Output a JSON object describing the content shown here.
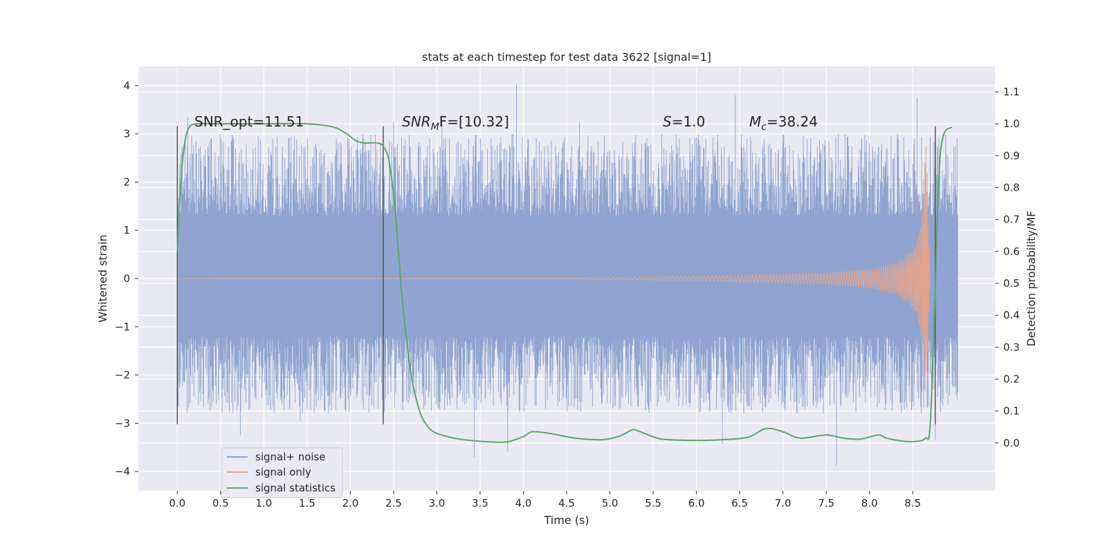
{
  "chart_data": {
    "type": "line",
    "title": "stats at each timestep for test data 3622 [signal=1]",
    "xlabel": "Time (s)",
    "ylabel": "Whitened strain",
    "y2label": "Detection probability/MF",
    "xlim": [
      -0.45,
      9.45
    ],
    "ylim": [
      -4.4,
      4.4
    ],
    "y2lim": [
      -0.15,
      1.18
    ],
    "x_ticks": [
      "0.0",
      "0.5",
      "1.0",
      "1.5",
      "2.0",
      "2.5",
      "3.0",
      "3.5",
      "4.0",
      "4.5",
      "5.0",
      "5.5",
      "6.0",
      "6.5",
      "7.0",
      "7.5",
      "8.0",
      "8.5"
    ],
    "y_ticks": [
      "4",
      "3",
      "2",
      "1",
      "0",
      "−1",
      "−2",
      "−3",
      "−4"
    ],
    "y2_ticks": [
      "1.1",
      "1.0",
      "0.9",
      "0.8",
      "0.7",
      "0.6",
      "0.5",
      "0.4",
      "0.3",
      "0.2",
      "0.1",
      "0.0"
    ],
    "grid": true,
    "legend_position": "lower-left",
    "annotations": {
      "snr_opt": "SNR_opt=11.51",
      "snr_mf_main": "SNR",
      "snr_mf_sub": "M",
      "snr_mf_rest": "F=[10.32]",
      "s_var": "S",
      "s_rest": "=1.0",
      "mc_var": "M",
      "mc_sub": "c",
      "mc_rest": "=38.24"
    },
    "vertical_lines": [
      {
        "x": 0.0,
        "y_range": [
          -3.02,
          3.16
        ]
      },
      {
        "x": 2.38,
        "y_range": [
          -3.02,
          3.16
        ]
      },
      {
        "x": 8.76,
        "y_range": [
          -3.02,
          3.16
        ]
      }
    ],
    "noise_envelope": {
      "x_range": [
        0.0,
        9.02
      ],
      "core_y": [
        -1.2,
        1.3
      ]
    },
    "series": [
      {
        "name": "signal+ noise",
        "color": "#8fa4d0",
        "x_range": [
          0.0,
          9.02
        ],
        "peaks": [
          {
            "x": 0.12,
            "y": 3.35
          },
          {
            "x": 0.73,
            "y": -3.25
          },
          {
            "x": 1.42,
            "y": -2.95
          },
          {
            "x": 2.5,
            "y": 3.25
          },
          {
            "x": 3.06,
            "y": 3.4
          },
          {
            "x": 3.43,
            "y": -3.7
          },
          {
            "x": 3.82,
            "y": -3.6
          },
          {
            "x": 3.92,
            "y": 4.02
          },
          {
            "x": 4.65,
            "y": 3.25
          },
          {
            "x": 6.45,
            "y": 3.8
          },
          {
            "x": 6.3,
            "y": -3.42
          },
          {
            "x": 7.62,
            "y": -3.88
          },
          {
            "x": 8.55,
            "y": 3.75
          },
          {
            "x": 8.76,
            "y": -3.35
          }
        ]
      },
      {
        "name": "signal only",
        "color": "#e3a58e",
        "x": [
          0.0,
          4.5,
          5.5,
          6.5,
          7.5,
          8.0,
          8.3,
          8.5,
          8.6,
          8.65,
          8.7
        ],
        "amplitude": [
          0.0,
          0.01,
          0.04,
          0.07,
          0.12,
          0.2,
          0.33,
          0.6,
          1.1,
          2.95,
          0.0
        ]
      },
      {
        "name": "signal statistics",
        "color": "#55a868",
        "x": [
          0.0,
          0.03,
          0.08,
          0.14,
          0.25,
          0.5,
          1.0,
          1.5,
          1.8,
          1.95,
          2.05,
          2.15,
          2.3,
          2.38,
          2.45,
          2.52,
          2.6,
          2.7,
          2.8,
          2.9,
          3.0,
          3.2,
          3.5,
          3.8,
          4.0,
          4.1,
          4.3,
          4.6,
          4.9,
          5.1,
          5.25,
          5.3,
          5.4,
          5.6,
          6.0,
          6.3,
          6.6,
          6.8,
          7.0,
          7.2,
          7.5,
          7.7,
          7.9,
          8.1,
          8.2,
          8.4,
          8.55,
          8.65,
          8.7,
          8.75,
          8.8,
          8.85,
          8.95
        ],
        "y": [
          0.6,
          0.78,
          0.93,
          0.99,
          1.0,
          1.0,
          1.0,
          1.0,
          0.99,
          0.97,
          0.95,
          0.94,
          0.94,
          0.93,
          0.88,
          0.72,
          0.45,
          0.22,
          0.1,
          0.05,
          0.03,
          0.015,
          0.005,
          0.003,
          0.02,
          0.035,
          0.03,
          0.015,
          0.01,
          0.02,
          0.04,
          0.04,
          0.03,
          0.012,
          0.008,
          0.01,
          0.018,
          0.045,
          0.035,
          0.015,
          0.025,
          0.015,
          0.012,
          0.025,
          0.015,
          0.005,
          0.005,
          0.015,
          0.05,
          0.4,
          0.82,
          0.96,
          0.99
        ]
      }
    ]
  }
}
